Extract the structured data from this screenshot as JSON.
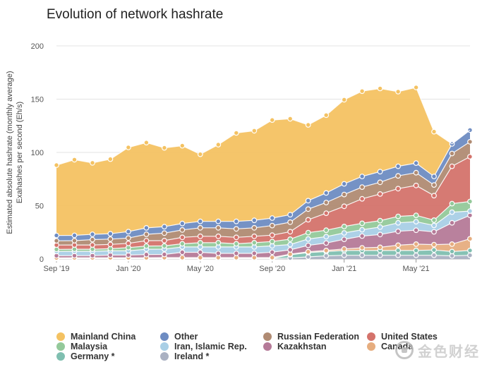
{
  "chart_data": {
    "type": "area",
    "stacked": true,
    "title": "Evolution of network hashrate",
    "ylabel_lines": [
      "Estimated absolute hashrate (monthly average)",
      "Exahashes per second (Eh/s)"
    ],
    "ylim": [
      0,
      200
    ],
    "yticks": [
      0,
      50,
      100,
      150,
      200
    ],
    "grid": true,
    "legend_position": "bottom",
    "x_tick_labels": [
      "Sep '19",
      "Jan '20",
      "May '20",
      "Sep '20",
      "Jan '21",
      "May '21"
    ],
    "x_tick_indices": [
      0,
      4,
      8,
      12,
      16,
      20
    ],
    "x": [
      "2019-09",
      "2019-10",
      "2019-11",
      "2019-12",
      "2020-01",
      "2020-02",
      "2020-03",
      "2020-04",
      "2020-05",
      "2020-06",
      "2020-07",
      "2020-08",
      "2020-09",
      "2020-10",
      "2020-11",
      "2020-12",
      "2021-01",
      "2021-02",
      "2021-03",
      "2021-04",
      "2021-05",
      "2021-06",
      "2021-07",
      "2021-08"
    ],
    "series": [
      {
        "name": "Ireland *",
        "color": "#aab1c2",
        "values": [
          0.3,
          0.3,
          0.3,
          0.3,
          0.3,
          0.3,
          0.3,
          0.3,
          0.3,
          0.3,
          0.3,
          0.3,
          0.3,
          1,
          2,
          3,
          3.5,
          3.5,
          3.5,
          3.5,
          3.5,
          3.5,
          3,
          3.5
        ]
      },
      {
        "name": "Germany *",
        "color": "#7fbfb0",
        "values": [
          0.3,
          0.3,
          0.3,
          0.3,
          0.3,
          0.3,
          0.3,
          0.3,
          0.3,
          0.3,
          0.3,
          0.3,
          0.3,
          3,
          4,
          4,
          4.5,
          4.5,
          4.5,
          4.5,
          4.5,
          5,
          4,
          4.5
        ]
      },
      {
        "name": "Canada",
        "color": "#e6ad7f",
        "values": [
          0.5,
          0.6,
          0.6,
          0.6,
          0.6,
          0.6,
          0.7,
          0.7,
          0.7,
          0.7,
          0.7,
          0.7,
          0.8,
          0.6,
          0.8,
          1,
          1.5,
          2.5,
          3,
          5,
          6,
          5,
          7,
          11
        ]
      },
      {
        "name": "Kazakhstan",
        "color": "#b57a98",
        "values": [
          2,
          2,
          2,
          2.5,
          2.5,
          3,
          3,
          5,
          5,
          4,
          4,
          4,
          5,
          4,
          6,
          7,
          9,
          11,
          12,
          13,
          13,
          12,
          20,
          22
        ]
      },
      {
        "name": "Iran, Islamic Rep.",
        "color": "#a9cfe6",
        "values": [
          4,
          4,
          4,
          4,
          4,
          5,
          5,
          5,
          5,
          6,
          6,
          6,
          6,
          5,
          6,
          6,
          6,
          6,
          7,
          8,
          8,
          6,
          10,
          4
        ]
      },
      {
        "name": "Malaysia",
        "color": "#94c99a",
        "values": [
          2,
          2,
          2,
          2,
          3,
          3,
          3,
          3,
          4,
          4,
          3,
          4,
          4,
          5,
          6,
          6,
          6,
          6,
          6,
          6,
          6,
          5,
          8,
          9
        ]
      },
      {
        "name": "United States",
        "color": "#d4736b",
        "values": [
          4,
          4,
          4,
          4,
          4,
          5,
          5,
          6,
          6,
          6,
          6,
          6,
          6,
          7,
          12,
          16,
          19,
          23,
          25,
          26,
          28,
          23,
          35,
          42
        ]
      },
      {
        "name": "Russian Federation",
        "color": "#b08b73",
        "values": [
          4,
          4,
          5,
          5,
          5,
          6,
          7,
          7,
          8,
          8,
          8,
          8,
          9,
          9,
          10,
          10,
          11,
          11,
          11,
          12,
          12,
          10,
          12,
          14
        ]
      },
      {
        "name": "Other",
        "color": "#6e8cc2",
        "values": [
          5,
          5,
          5,
          5,
          6,
          6,
          6,
          6,
          6,
          6,
          7,
          7,
          7,
          7,
          8,
          9,
          10,
          10,
          10,
          9,
          9,
          8,
          9,
          11
        ]
      },
      {
        "name": "Mainland China",
        "color": "#f4c262",
        "values": [
          66,
          71,
          67,
          70,
          79,
          80,
          74,
          73,
          63,
          72,
          83,
          84,
          92,
          90,
          71,
          73,
          79,
          80,
          78,
          70,
          71,
          42,
          0,
          0
        ]
      }
    ]
  },
  "legend": [
    {
      "label": "Mainland China",
      "color": "#f4c262",
      "col": 0,
      "row": 0
    },
    {
      "label": "Other",
      "color": "#6e8cc2",
      "col": 1,
      "row": 0
    },
    {
      "label": "Russian Federation",
      "color": "#b08b73",
      "col": 2,
      "row": 0
    },
    {
      "label": "United States",
      "color": "#d4736b",
      "col": 3,
      "row": 0
    },
    {
      "label": "Malaysia",
      "color": "#94c99a",
      "col": 0,
      "row": 1
    },
    {
      "label": "Iran, Islamic Rep.",
      "color": "#a9cfe6",
      "col": 1,
      "row": 1
    },
    {
      "label": "Kazakhstan",
      "color": "#b57a98",
      "col": 2,
      "row": 1
    },
    {
      "label": "Canada",
      "color": "#e6ad7f",
      "col": 3,
      "row": 1
    },
    {
      "label": "Germany *",
      "color": "#7fbfb0",
      "col": 0,
      "row": 2
    },
    {
      "label": "Ireland *",
      "color": "#aab1c2",
      "col": 1,
      "row": 2
    }
  ],
  "watermark": {
    "text": "金色财经"
  }
}
